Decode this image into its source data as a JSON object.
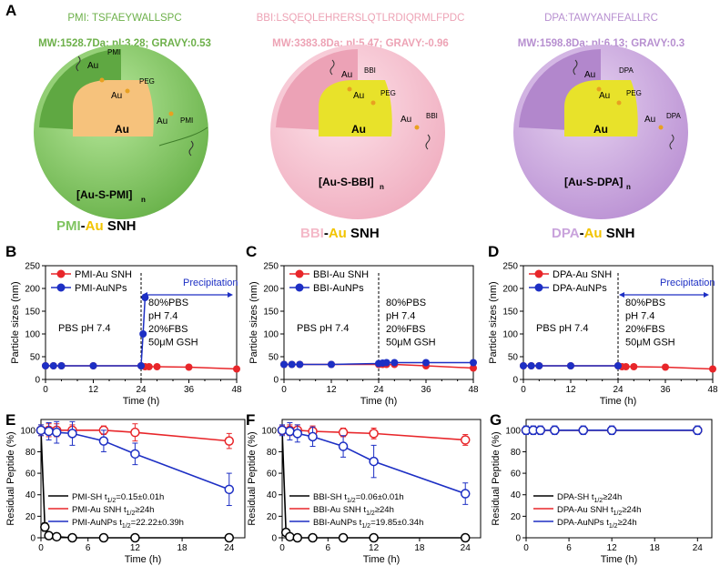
{
  "labels": {
    "A": "A",
    "B": "B",
    "C": "C",
    "D": "D",
    "E": "E",
    "F": "F",
    "G": "G"
  },
  "top": [
    {
      "seq": "PMI:  TSFAEYWALLSPC",
      "mw": "MW:1528.7Da; pI:3.28; GRAVY:0.53",
      "formula": "[Au-S-PMI]",
      "sub": "n",
      "name_a": "PMI",
      "name_b": "-",
      "name_c": "Au",
      "name_d": "SNH",
      "ligand": "PMI",
      "peg": "PEG",
      "core": "Au",
      "au": "Au",
      "color": "#7fc460",
      "seqcolor": "#6db04a"
    },
    {
      "seq": "BBI:LSQEQLEHRERSLQTLRDIQRMLFPDC",
      "mw": "MW:3383.8Da; pI:5.47; GRAVY:-0.96",
      "formula": "[Au-S-BBI]",
      "sub": "n",
      "name_a": "BBI",
      "name_b": "-",
      "name_c": "Au",
      "name_d": "SNH",
      "ligand": "BBI",
      "peg": "PEG",
      "core": "Au",
      "au": "Au",
      "color": "#f4b9c8",
      "seqcolor": "#eda3b5"
    },
    {
      "seq": "DPA:TAWYANFEALLRC",
      "mw": "MW:1598.8Da; pI:6.13; GRAVY:0.3",
      "formula": "[Au-S-DPA]",
      "sub": "n",
      "name_a": "DPA",
      "name_b": "-",
      "name_c": "Au",
      "name_d": "SNH",
      "ligand": "DPA",
      "peg": "PEG",
      "core": "Au",
      "au": "Au",
      "color": "#c9a3dc",
      "seqcolor": "#b78fd0"
    }
  ],
  "colors": {
    "red": "#e8262a",
    "blue": "#1d2fc4",
    "black": "#000000",
    "gold": "#e8a020",
    "accent": "#f2c400"
  },
  "chart_data": [
    {
      "type": "scatter",
      "panel": "B",
      "ylabel": "Particle sizes (nm)",
      "xlabel": "Time (h)",
      "xlim": [
        0,
        48
      ],
      "ylim": [
        0,
        250
      ],
      "xticks": [
        0,
        4,
        8,
        12,
        16,
        20,
        24,
        28,
        32,
        36,
        40,
        44,
        48
      ],
      "yticks": [
        0,
        50,
        100,
        150,
        200,
        250
      ],
      "legend": [
        "PMI-Au SNH",
        "PMI-AuNPs"
      ],
      "note_left": "PBS pH 7.4",
      "note_right": [
        "80%PBS",
        "pH 7.4",
        "20%FBS",
        "50μM GSH"
      ],
      "precip": "Precipitation",
      "series": [
        {
          "name": "PMI-Au SNH",
          "color": "#e8262a",
          "x": [
            0,
            2,
            4,
            12,
            24,
            25,
            26,
            28,
            36,
            48
          ],
          "y": [
            30,
            30,
            30,
            30,
            30,
            28,
            28,
            28,
            27,
            23
          ]
        },
        {
          "name": "PMI-AuNPs",
          "color": "#1d2fc4",
          "x": [
            0,
            2,
            4,
            12,
            24,
            24.5,
            25
          ],
          "y": [
            30,
            30,
            30,
            30,
            30,
            100,
            180
          ]
        }
      ]
    },
    {
      "type": "scatter",
      "panel": "C",
      "ylabel": "Particle sizes (nm)",
      "xlabel": "Time (h)",
      "xlim": [
        0,
        48
      ],
      "ylim": [
        0,
        250
      ],
      "xticks": [
        0,
        4,
        8,
        12,
        16,
        20,
        24,
        28,
        32,
        36,
        40,
        44,
        48
      ],
      "yticks": [
        0,
        50,
        100,
        150,
        200,
        250
      ],
      "legend": [
        "BBI-Au SNH",
        "BBI-AuNPs"
      ],
      "note_left": "PBS pH 7.4",
      "note_right": [
        "80%PBS",
        "pH 7.4",
        "20%FBS",
        "50μM GSH"
      ],
      "series": [
        {
          "name": "BBI-Au SNH",
          "color": "#e8262a",
          "x": [
            0,
            2,
            4,
            12,
            24,
            25,
            26,
            28,
            36,
            48
          ],
          "y": [
            33,
            33,
            33,
            33,
            33,
            33,
            33,
            33,
            30,
            25
          ]
        },
        {
          "name": "BBI-AuNPs",
          "color": "#1d2fc4",
          "x": [
            0,
            2,
            4,
            12,
            24,
            25,
            26,
            28,
            36,
            48
          ],
          "y": [
            33,
            33,
            33,
            33,
            35,
            36,
            37,
            37,
            37,
            37
          ]
        }
      ]
    },
    {
      "type": "scatter",
      "panel": "D",
      "ylabel": "Particle sizes (nm)",
      "xlabel": "Time (h)",
      "xlim": [
        0,
        48
      ],
      "ylim": [
        0,
        250
      ],
      "xticks": [
        0,
        4,
        8,
        12,
        16,
        20,
        24,
        28,
        32,
        36,
        40,
        44,
        48
      ],
      "yticks": [
        0,
        50,
        100,
        150,
        200,
        250
      ],
      "legend": [
        "DPA-Au SNH",
        "DPA-AuNPs"
      ],
      "note_left": "PBS pH 7.4",
      "note_right": [
        "80%PBS",
        "pH 7.4",
        "20%FBS",
        "50μM GSH"
      ],
      "precip": "Precipitation",
      "series": [
        {
          "name": "DPA-Au SNH",
          "color": "#e8262a",
          "x": [
            0,
            2,
            4,
            12,
            24,
            25,
            26,
            28,
            36,
            48
          ],
          "y": [
            30,
            30,
            30,
            30,
            30,
            28,
            28,
            28,
            27,
            23
          ]
        },
        {
          "name": "DPA-AuNPs",
          "color": "#1d2fc4",
          "x": [
            0,
            2,
            4,
            12,
            24
          ],
          "y": [
            30,
            30,
            30,
            30,
            30
          ]
        }
      ]
    },
    {
      "type": "line",
      "panel": "E",
      "ylabel": "Residual Peptide (%)",
      "xlabel": "Time (h)",
      "xlim": [
        0,
        26
      ],
      "ylim": [
        0,
        110
      ],
      "xticks": [
        0,
        6,
        12,
        18,
        24
      ],
      "yticks": [
        0,
        20,
        40,
        60,
        80,
        100
      ],
      "legend": [
        [
          "PMI-SH  t",
          "1/2",
          "=0.15±0.01h"
        ],
        [
          "PMI-Au SNH  t",
          "1/2",
          "≥24h"
        ],
        [
          "PMI-AuNPs  t",
          "1/2",
          "=22.22±0.39h"
        ]
      ],
      "series": [
        {
          "name": "PMI-SH",
          "color": "#000000",
          "x": [
            0,
            0.5,
            1,
            2,
            4,
            8,
            12,
            24
          ],
          "y": [
            100,
            10,
            2,
            1,
            0,
            0,
            0,
            0
          ],
          "err": [
            0,
            4,
            1,
            1,
            0,
            0,
            0,
            0
          ]
        },
        {
          "name": "PMI-Au SNH",
          "color": "#e8262a",
          "x": [
            0,
            1,
            2,
            4,
            8,
            12,
            24
          ],
          "y": [
            100,
            100,
            100,
            100,
            100,
            98,
            90
          ],
          "err": [
            5,
            6,
            6,
            5,
            4,
            8,
            7
          ]
        },
        {
          "name": "PMI-AuNPs",
          "color": "#1d2fc4",
          "x": [
            0,
            1,
            2,
            4,
            8,
            12,
            24
          ],
          "y": [
            100,
            99,
            98,
            97,
            90,
            78,
            45
          ],
          "err": [
            5,
            8,
            10,
            11,
            10,
            10,
            15
          ]
        }
      ]
    },
    {
      "type": "line",
      "panel": "F",
      "ylabel": "Residual Peptide (%)",
      "xlabel": "Time (h)",
      "xlim": [
        0,
        26
      ],
      "ylim": [
        0,
        110
      ],
      "xticks": [
        0,
        6,
        12,
        18,
        24
      ],
      "yticks": [
        0,
        20,
        40,
        60,
        80,
        100
      ],
      "legend": [
        [
          "BBI-SH  t",
          "1/2",
          "=0.06±0.01h"
        ],
        [
          "BBI-Au SNH  t",
          "1/2",
          "≥24h"
        ],
        [
          "BBI-AuNPs  t",
          "1/2",
          "=19.85±0.34h"
        ]
      ],
      "series": [
        {
          "name": "BBI-SH",
          "color": "#000000",
          "x": [
            0,
            0.5,
            1,
            2,
            4,
            8,
            12,
            24
          ],
          "y": [
            100,
            5,
            1,
            0,
            0,
            0,
            0,
            0
          ],
          "err": [
            0,
            3,
            1,
            0,
            0,
            0,
            0,
            0
          ]
        },
        {
          "name": "BBI-Au SNH",
          "color": "#e8262a",
          "x": [
            0,
            1,
            2,
            4,
            8,
            12,
            24
          ],
          "y": [
            100,
            100,
            100,
            99,
            98,
            97,
            91
          ],
          "err": [
            4,
            5,
            5,
            5,
            4,
            5,
            5
          ]
        },
        {
          "name": "BBI-AuNPs",
          "color": "#1d2fc4",
          "x": [
            0,
            1,
            2,
            4,
            8,
            12,
            24
          ],
          "y": [
            100,
            99,
            97,
            94,
            85,
            71,
            41
          ],
          "err": [
            5,
            8,
            8,
            9,
            10,
            15,
            10
          ]
        }
      ]
    },
    {
      "type": "line",
      "panel": "G",
      "ylabel": "Residual Peptide (%)",
      "xlabel": "Time (h)",
      "xlim": [
        0,
        26
      ],
      "ylim": [
        0,
        110
      ],
      "xticks": [
        0,
        6,
        12,
        18,
        24
      ],
      "yticks": [
        0,
        20,
        40,
        60,
        80,
        100
      ],
      "legend": [
        [
          "DPA-SH  t",
          "1/2",
          "≥24h"
        ],
        [
          "DPA-Au SNH  t",
          "1/2",
          "≥24h"
        ],
        [
          "DPA-AuNPs  t",
          "1/2",
          "≥24h"
        ]
      ],
      "series": [
        {
          "name": "DPA-SH",
          "color": "#000000",
          "x": [
            0,
            1,
            2,
            4,
            8,
            12,
            24
          ],
          "y": [
            100,
            100,
            100,
            100,
            100,
            100,
            100
          ],
          "err": [
            3,
            3,
            3,
            3,
            3,
            3,
            3
          ]
        },
        {
          "name": "DPA-Au SNH",
          "color": "#e8262a",
          "x": [
            0,
            1,
            2,
            4,
            8,
            12,
            24
          ],
          "y": [
            100,
            100,
            100,
            100,
            100,
            100,
            100
          ],
          "err": [
            3,
            3,
            3,
            3,
            3,
            3,
            3
          ]
        },
        {
          "name": "DPA-AuNPs",
          "color": "#1d2fc4",
          "x": [
            0,
            1,
            2,
            4,
            8,
            12,
            24
          ],
          "y": [
            100,
            100,
            100,
            100,
            100,
            100,
            100
          ],
          "err": [
            4,
            4,
            4,
            4,
            4,
            4,
            4
          ]
        }
      ]
    }
  ]
}
